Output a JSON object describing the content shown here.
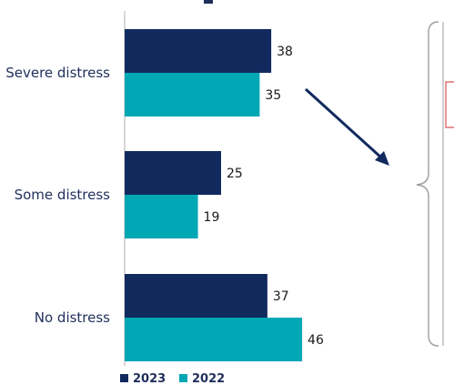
{
  "chart_data": {
    "type": "bar",
    "orientation": "horizontal",
    "categories": [
      "Severe distress",
      "Some distress",
      "No distress"
    ],
    "series": [
      {
        "name": "2023",
        "values": [
          38,
          25,
          37
        ],
        "color": "#112a5e"
      },
      {
        "name": "2022",
        "values": [
          35,
          19,
          46
        ],
        "color": "#00a7b5"
      }
    ],
    "xlim": [
      0,
      50
    ],
    "grid": false,
    "legend_position": "bottom-left"
  },
  "colors": {
    "axis": "#bfbfbf",
    "arrow": "#112a5e",
    "brace": "#9e9e9e",
    "callout_border": "#9e9e9e",
    "callout_marker": "#d9534f",
    "category_text": "#1f2f5c"
  }
}
